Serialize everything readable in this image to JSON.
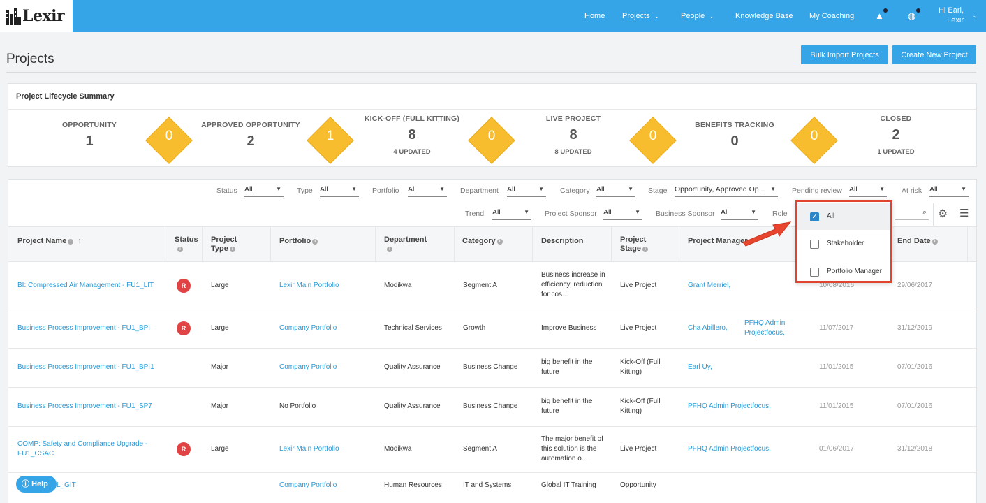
{
  "brand": {
    "name": "Lexir"
  },
  "nav": {
    "home": "Home",
    "projects": "Projects",
    "people": "People",
    "knowledge": "Knowledge Base",
    "coaching": "My Coaching",
    "user_line1": "Hi Earl,",
    "user_line2": "Lexir"
  },
  "page": {
    "title": "Projects",
    "bulk_import": "Bulk Import Projects",
    "create_new": "Create New Project"
  },
  "summary": {
    "title": "Project Lifecycle Summary",
    "stages": [
      {
        "label": "OPPORTUNITY",
        "count": "1",
        "updated": ""
      },
      {
        "label": "APPROVED OPPORTUNITY",
        "count": "2",
        "updated": ""
      },
      {
        "label": "KICK-OFF (FULL KITTING)",
        "count": "8",
        "updated": "4 UPDATED"
      },
      {
        "label": "LIVE PROJECT",
        "count": "8",
        "updated": "8 UPDATED"
      },
      {
        "label": "BENEFITS TRACKING",
        "count": "0",
        "updated": ""
      },
      {
        "label": "CLOSED",
        "count": "2",
        "updated": "1 UPDATED"
      }
    ],
    "transitions": [
      "0",
      "1",
      "0",
      "0",
      "0"
    ]
  },
  "filters": {
    "status": {
      "label": "Status",
      "value": "All"
    },
    "type": {
      "label": "Type",
      "value": "All"
    },
    "portfolio": {
      "label": "Portfolio",
      "value": "All"
    },
    "department": {
      "label": "Department",
      "value": "All"
    },
    "category": {
      "label": "Category",
      "value": "All"
    },
    "stage": {
      "label": "Stage",
      "value": "Opportunity, Approved Op..."
    },
    "pending": {
      "label": "Pending review",
      "value": "All"
    },
    "atrisk": {
      "label": "At risk",
      "value": "All"
    },
    "trend": {
      "label": "Trend",
      "value": "All"
    },
    "sponsor": {
      "label": "Project Sponsor",
      "value": "All"
    },
    "bsponsor": {
      "label": "Business Sponsor",
      "value": "All"
    },
    "role": {
      "label": "Role"
    }
  },
  "role_options": [
    {
      "label": "All",
      "checked": true
    },
    {
      "label": "Stakeholder",
      "checked": false
    },
    {
      "label": "Portfolio Manager",
      "checked": false
    }
  ],
  "columns": {
    "name": "Project Name",
    "status": "Status",
    "type_1": "Project",
    "type_2": "Type",
    "portfolio": "Portfolio",
    "department": "Department",
    "category": "Category",
    "description": "Description",
    "stage_1": "Project",
    "stage_2": "Stage",
    "manager": "Project Manager",
    "end": "End Date"
  },
  "rows": [
    {
      "name": "BI: Compressed Air Management - FU1_LIT",
      "status": "R",
      "type": "Large",
      "portfolio": "Lexir Main Portfolio",
      "department": "Modikwa",
      "category": "Segment A",
      "description": "Business increase in efficiency, reduction for cos...",
      "stage": "Live Project",
      "manager": "Grant Merriel,",
      "manager2": "",
      "start": "10/08/2016",
      "end": "29/06/2017"
    },
    {
      "name": "Business Process Improvement - FU1_BPI",
      "status": "R",
      "type": "Large",
      "portfolio": "Company Portfolio",
      "department": "Technical Services",
      "category": "Growth",
      "description": "Improve Business",
      "stage": "Live Project",
      "manager": "Cha Abillero,",
      "manager2": "PFHQ Admin Projectfocus,",
      "start": "11/07/2017",
      "end": "31/12/2019"
    },
    {
      "name": "Business Process Improvement - FU1_BPI1",
      "status": "",
      "type": "Major",
      "portfolio": "Company Portfolio",
      "department": "Quality Assurance",
      "category": "Business Change",
      "description": "big benefit in the future",
      "stage": "Kick-Off (Full Kitting)",
      "manager": "Earl Uy,",
      "manager2": "",
      "start": "11/01/2015",
      "end": "07/01/2016"
    },
    {
      "name": "Business Process Improvement - FU1_SP7",
      "status": "",
      "type": "Major",
      "portfolio": "No Portfolio",
      "department": "Quality Assurance",
      "category": "Business Change",
      "description": "big benefit in the future",
      "stage": "Kick-Off (Full Kitting)",
      "manager": "PFHQ Admin Projectfocus,",
      "manager2": "",
      "start": "11/01/2015",
      "end": "07/01/2016"
    },
    {
      "name": "COMP: Safety and Compliance Upgrade - FU1_CSAC",
      "status": "R",
      "type": "Large",
      "portfolio": "Lexir Main Portfolio",
      "department": "Modikwa",
      "category": "Segment A",
      "description": "The major benefit of this solution is the automation o...",
      "stage": "Live Project",
      "manager": "PFHQ Admin Projectfocus,",
      "manager2": "",
      "start": "01/06/2017",
      "end": "31/12/2018"
    },
    {
      "name": "IT Training - L_GIT",
      "status": "",
      "type": "",
      "portfolio": "Company Portfolio",
      "department": "Human Resources",
      "category": "IT and Systems",
      "description": "Global IT Training",
      "stage": "Opportunity",
      "manager": "",
      "manager2": "",
      "start": "",
      "end": ""
    }
  ],
  "help": {
    "label": "Help"
  },
  "colors": {
    "primary": "#35a5e8",
    "diamond": "#f7bd2e",
    "status_r": "#e04343",
    "highlight": "#e0442e"
  }
}
